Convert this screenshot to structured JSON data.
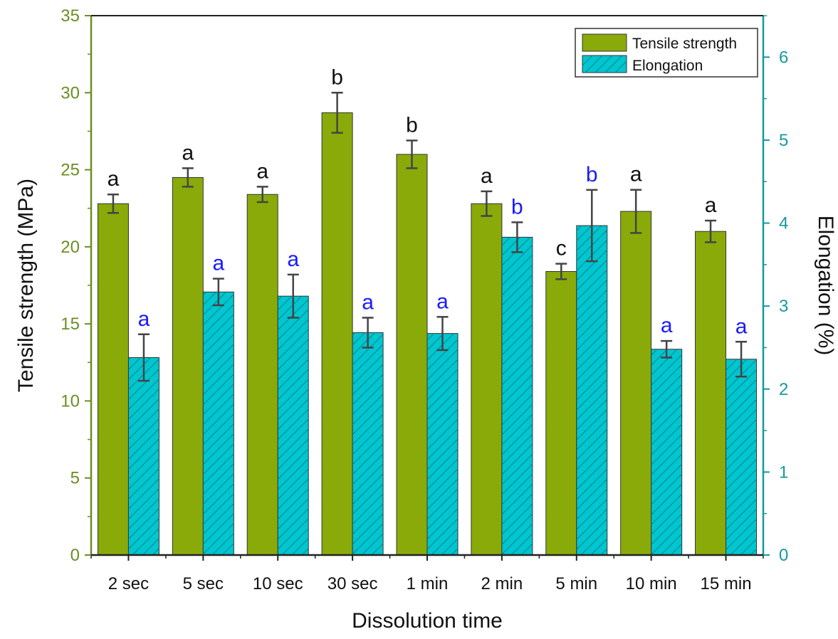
{
  "chart_data": {
    "type": "bar",
    "title": "",
    "xlabel": "Dissolution time",
    "ylabel": "Tensile strength (MPa)",
    "y2label": "Elongation (%)",
    "categories": [
      "2 sec",
      "5 sec",
      "10 sec",
      "30 sec",
      "1 min",
      "2 min",
      "5 min",
      "10 min",
      "15 min"
    ],
    "ylim": [
      0,
      35
    ],
    "y2lim": [
      0,
      6.5
    ],
    "yticks": [
      "0",
      "5",
      "10",
      "15",
      "20",
      "25",
      "30",
      "35"
    ],
    "y2ticks": [
      "0",
      "1",
      "2",
      "3",
      "4",
      "5",
      "6"
    ],
    "series": [
      {
        "name": "Tensile strength",
        "axis": "left",
        "color": "#8aaa0a",
        "values": [
          22.8,
          24.5,
          23.4,
          28.7,
          26.0,
          22.8,
          18.4,
          22.3,
          21.0
        ],
        "errors": [
          0.6,
          0.6,
          0.5,
          1.3,
          0.9,
          0.8,
          0.5,
          1.4,
          0.7
        ],
        "significance": [
          "a",
          "a",
          "a",
          "b",
          "b",
          "a",
          "c",
          "a",
          "a"
        ],
        "significance_color": "#111111"
      },
      {
        "name": "Elongation",
        "axis": "right",
        "color": "#00c6d0",
        "pattern": "diagonal-hatch",
        "values": [
          2.38,
          3.17,
          3.12,
          2.68,
          2.67,
          3.83,
          3.97,
          2.48,
          2.36
        ],
        "errors": [
          0.28,
          0.16,
          0.26,
          0.18,
          0.2,
          0.18,
          0.43,
          0.1,
          0.21
        ],
        "significance": [
          "a",
          "a",
          "a",
          "a",
          "a",
          "b",
          "b",
          "a",
          "a"
        ],
        "significance_color": "#1a1aff"
      }
    ],
    "legend": {
      "position": "top-right",
      "entries": [
        "Tensile strength",
        "Elongation"
      ]
    },
    "axis_colors": {
      "left": "#6b8e23",
      "right": "#139aa0"
    },
    "grid": false
  }
}
